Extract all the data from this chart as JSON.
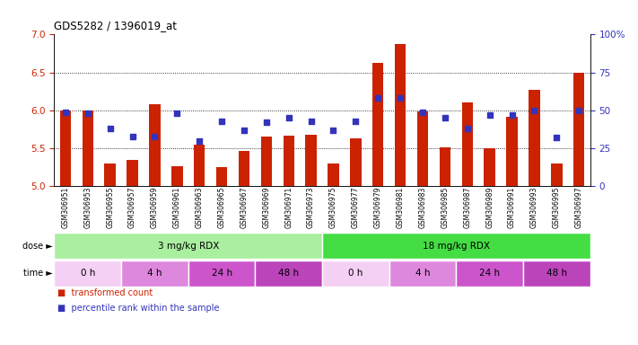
{
  "title": "GDS5282 / 1396019_at",
  "samples": [
    "GSM306951",
    "GSM306953",
    "GSM306955",
    "GSM306957",
    "GSM306959",
    "GSM306961",
    "GSM306963",
    "GSM306965",
    "GSM306967",
    "GSM306969",
    "GSM306971",
    "GSM306973",
    "GSM306975",
    "GSM306977",
    "GSM306979",
    "GSM306981",
    "GSM306983",
    "GSM306985",
    "GSM306987",
    "GSM306989",
    "GSM306991",
    "GSM306993",
    "GSM306995",
    "GSM306997"
  ],
  "bar_values": [
    6.0,
    6.0,
    5.3,
    5.35,
    6.08,
    5.27,
    5.55,
    5.25,
    5.47,
    5.65,
    5.67,
    5.68,
    5.3,
    5.63,
    6.63,
    6.88,
    5.99,
    5.51,
    6.1,
    5.5,
    5.92,
    6.27,
    5.3,
    6.5
  ],
  "dot_values": [
    49,
    48,
    38,
    33,
    33,
    48,
    30,
    43,
    37,
    42,
    45,
    43,
    37,
    43,
    58,
    58,
    49,
    45,
    38,
    47,
    47,
    50,
    32,
    50
  ],
  "ylim_left": [
    5.0,
    7.0
  ],
  "ylim_right": [
    0,
    100
  ],
  "yticks_left": [
    5.0,
    5.5,
    6.0,
    6.5,
    7.0
  ],
  "yticks_right": [
    0,
    25,
    50,
    75,
    100
  ],
  "ytick_labels_right": [
    "0",
    "25",
    "50",
    "75",
    "100%"
  ],
  "bar_color": "#cc2200",
  "dot_color": "#3333bb",
  "dose_groups": [
    {
      "label": "3 mg/kg RDX",
      "start": 0,
      "end": 12,
      "color": "#aaeea0"
    },
    {
      "label": "18 mg/kg RDX",
      "start": 12,
      "end": 24,
      "color": "#44dd44"
    }
  ],
  "time_groups": [
    {
      "label": "0 h",
      "start": 0,
      "end": 3,
      "color": "#f5d0f5"
    },
    {
      "label": "4 h",
      "start": 3,
      "end": 6,
      "color": "#dd88dd"
    },
    {
      "label": "24 h",
      "start": 6,
      "end": 9,
      "color": "#cc55cc"
    },
    {
      "label": "48 h",
      "start": 9,
      "end": 12,
      "color": "#bb44bb"
    },
    {
      "label": "0 h",
      "start": 12,
      "end": 15,
      "color": "#f5d0f5"
    },
    {
      "label": "4 h",
      "start": 15,
      "end": 18,
      "color": "#dd88dd"
    },
    {
      "label": "24 h",
      "start": 18,
      "end": 21,
      "color": "#cc55cc"
    },
    {
      "label": "48 h",
      "start": 21,
      "end": 24,
      "color": "#bb44bb"
    }
  ],
  "legend_items": [
    {
      "label": "transformed count",
      "color": "#cc2200"
    },
    {
      "label": "percentile rank within the sample",
      "color": "#3333bb"
    }
  ]
}
